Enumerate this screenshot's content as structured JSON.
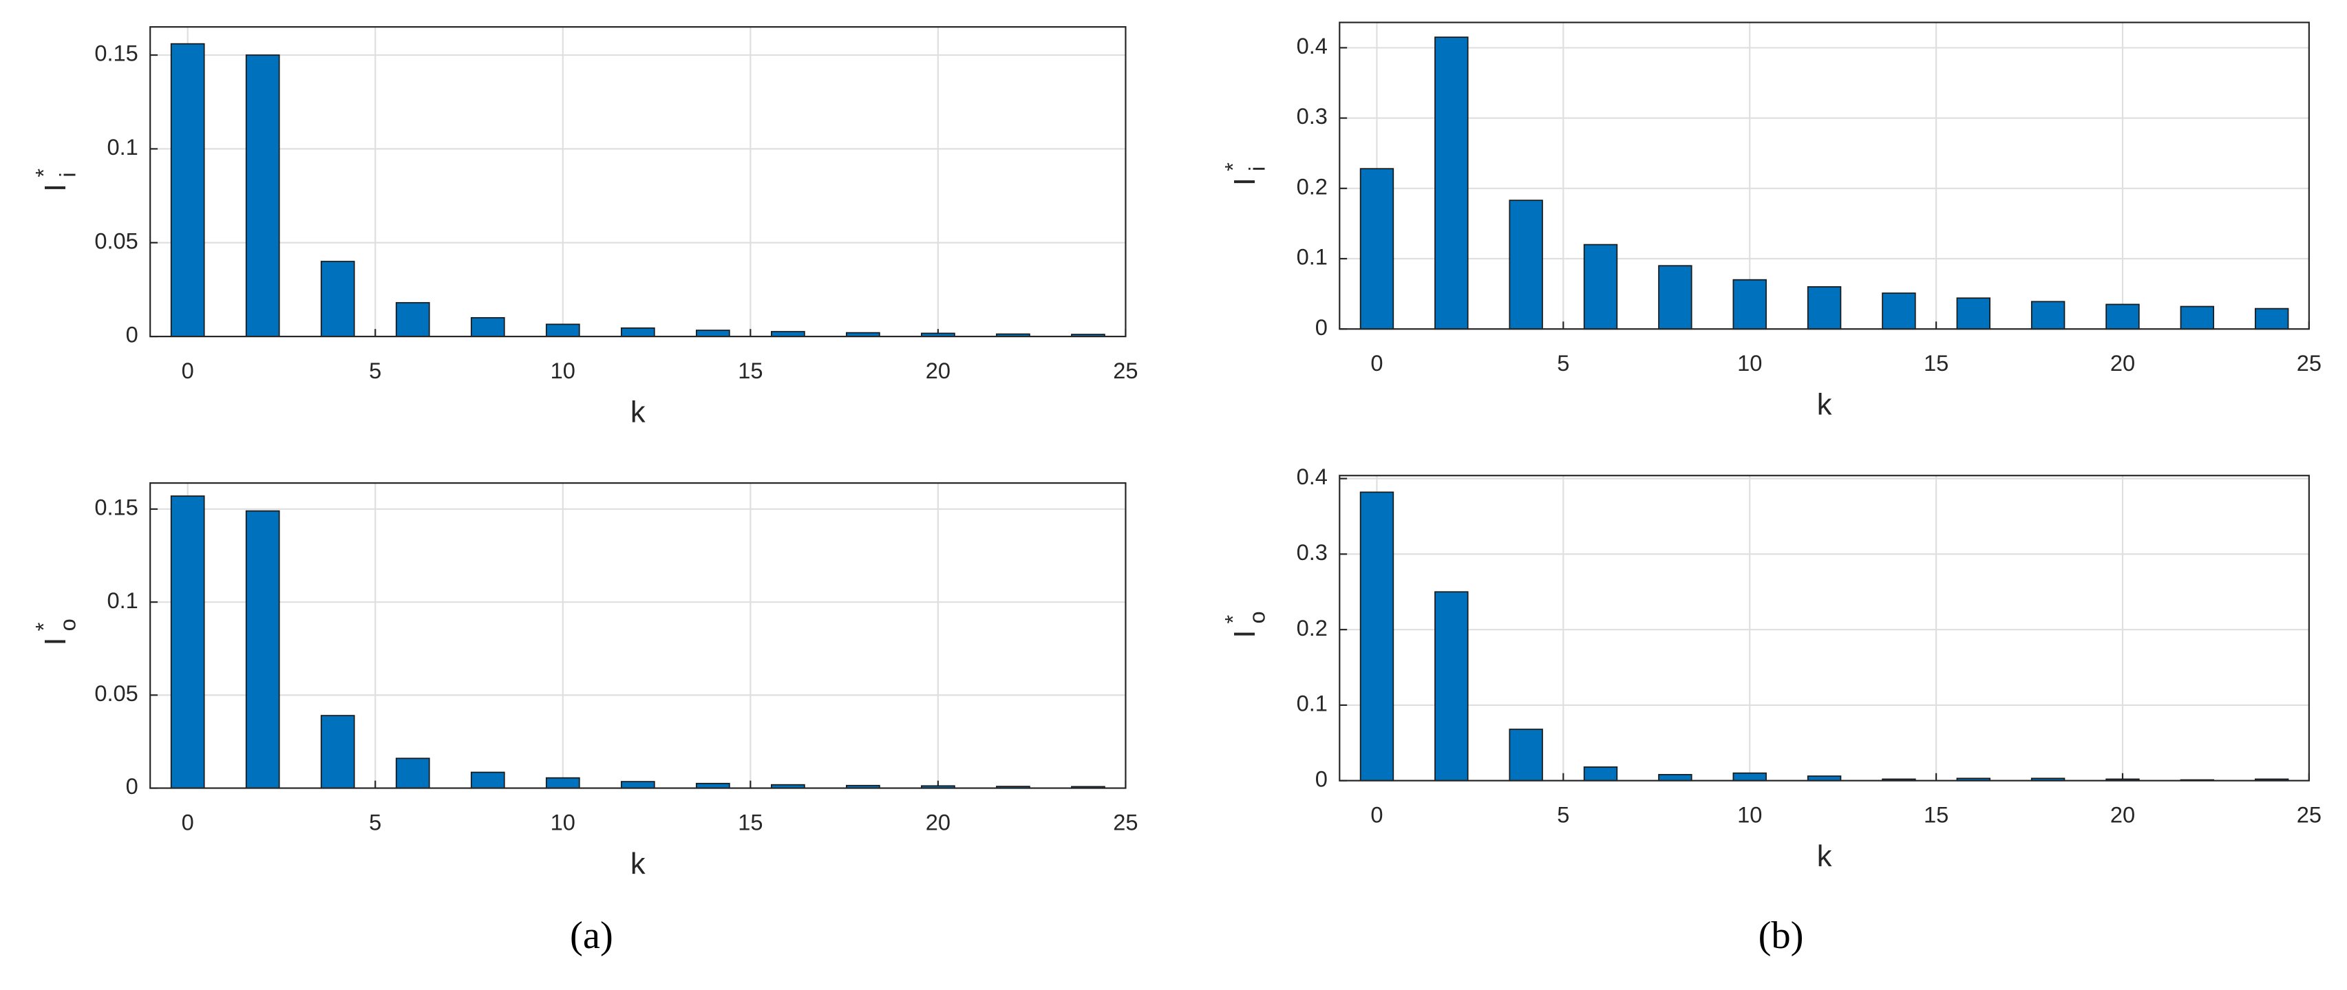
{
  "chart_data": [
    {
      "type": "bar",
      "ylabel": "I",
      "ylabel_sup": "*",
      "ylabel_sub": "i",
      "xlabel": "k",
      "color": "#0072bd",
      "grid": true,
      "x": [
        0,
        1,
        2,
        3,
        4,
        5,
        6,
        7,
        8,
        9,
        10,
        11,
        12,
        13,
        14,
        15,
        16,
        17,
        18,
        19,
        20,
        21,
        22,
        23,
        24
      ],
      "values": [
        0.156,
        0,
        0.15,
        0,
        0.04,
        0,
        0.018,
        0,
        0.01,
        0,
        0.0065,
        0,
        0.0045,
        0,
        0.0033,
        0,
        0.0026,
        0,
        0.002,
        0,
        0.0017,
        0,
        0.0013,
        0,
        0.0011
      ],
      "xlim": [
        -1,
        25
      ],
      "xticks": [
        0,
        5,
        10,
        15,
        20,
        25
      ],
      "ylim": [
        0,
        0.165
      ],
      "yticks": [
        0,
        0.05,
        0.1,
        0.15
      ]
    },
    {
      "type": "bar",
      "ylabel": "I",
      "ylabel_sup": "*",
      "ylabel_sub": "o",
      "xlabel": "k",
      "color": "#0072bd",
      "grid": true,
      "x": [
        0,
        1,
        2,
        3,
        4,
        5,
        6,
        7,
        8,
        9,
        10,
        11,
        12,
        13,
        14,
        15,
        16,
        17,
        18,
        19,
        20,
        21,
        22,
        23,
        24
      ],
      "values": [
        0.157,
        0,
        0.149,
        0,
        0.039,
        0,
        0.016,
        0,
        0.0085,
        0,
        0.0055,
        0,
        0.0035,
        0,
        0.0025,
        0,
        0.0018,
        0,
        0.0014,
        0,
        0.0012,
        0,
        0.0009,
        0,
        0.0008
      ],
      "xlim": [
        -1,
        25
      ],
      "xticks": [
        0,
        5,
        10,
        15,
        20,
        25
      ],
      "ylim": [
        0,
        0.164
      ],
      "yticks": [
        0,
        0.05,
        0.1,
        0.15
      ]
    },
    {
      "type": "bar",
      "ylabel": "I",
      "ylabel_sup": "*",
      "ylabel_sub": "i",
      "xlabel": "k",
      "color": "#0072bd",
      "grid": true,
      "x": [
        0,
        1,
        2,
        3,
        4,
        5,
        6,
        7,
        8,
        9,
        10,
        11,
        12,
        13,
        14,
        15,
        16,
        17,
        18,
        19,
        20,
        21,
        22,
        23,
        24
      ],
      "values": [
        0.228,
        0,
        0.415,
        0,
        0.183,
        0,
        0.12,
        0,
        0.09,
        0,
        0.07,
        0,
        0.06,
        0,
        0.051,
        0,
        0.044,
        0,
        0.039,
        0,
        0.035,
        0,
        0.032,
        0,
        0.029
      ],
      "xlim": [
        -1,
        25
      ],
      "xticks": [
        0,
        5,
        10,
        15,
        20,
        25
      ],
      "ylim": [
        0,
        0.436
      ],
      "yticks": [
        0,
        0.1,
        0.2,
        0.3,
        0.4
      ]
    },
    {
      "type": "bar",
      "ylabel": "I",
      "ylabel_sup": "*",
      "ylabel_sub": "o",
      "xlabel": "k",
      "color": "#0072bd",
      "grid": true,
      "x": [
        0,
        1,
        2,
        3,
        4,
        5,
        6,
        7,
        8,
        9,
        10,
        11,
        12,
        13,
        14,
        15,
        16,
        17,
        18,
        19,
        20,
        21,
        22,
        23,
        24
      ],
      "values": [
        0.382,
        0,
        0.25,
        0,
        0.068,
        0,
        0.018,
        0,
        0.008,
        0,
        0.01,
        0,
        0.006,
        0,
        0.002,
        0,
        0.003,
        0,
        0.003,
        0,
        0.002,
        0,
        0.001,
        0,
        0.002
      ],
      "xlim": [
        -1,
        25
      ],
      "xticks": [
        0,
        5,
        10,
        15,
        20,
        25
      ],
      "ylim": [
        0,
        0.404
      ],
      "yticks": [
        0,
        0.1,
        0.2,
        0.3,
        0.4
      ]
    }
  ],
  "captions": [
    "(a)",
    "(b)"
  ]
}
